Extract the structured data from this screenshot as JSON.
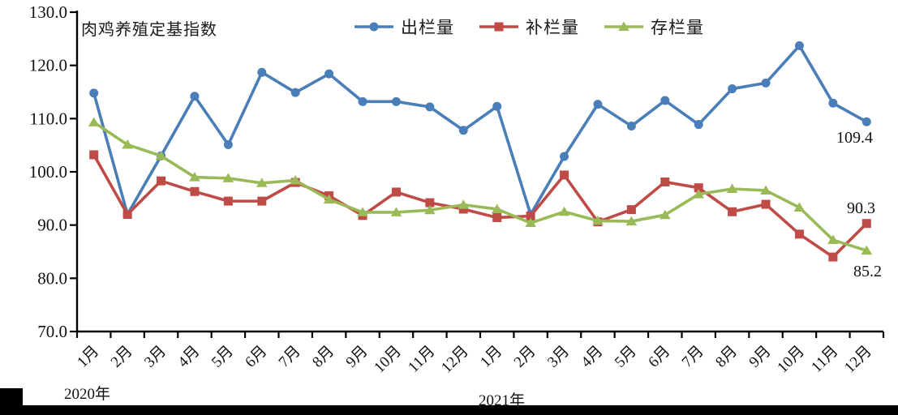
{
  "title": "肉鸡养殖定基指数",
  "chart_data": {
    "type": "line",
    "title": "肉鸡养殖定基指数",
    "xlabel": "",
    "ylabel": "",
    "ylim": [
      70,
      130
    ],
    "y_ticks": [
      "130.0",
      "120.0",
      "110.0",
      "100.0",
      "90.0",
      "80.0",
      "70.0"
    ],
    "grid": false,
    "legend_position": "top",
    "x_categories": [
      "1月",
      "2月",
      "3月",
      "4月",
      "5月",
      "6月",
      "7月",
      "8月",
      "9月",
      "10月",
      "11月",
      "12月",
      "1月",
      "2月",
      "3月",
      "4月",
      "5月",
      "6月",
      "7月",
      "8月",
      "9月",
      "10月",
      "11月",
      "12月"
    ],
    "year_groups": [
      {
        "label": "2020年",
        "start": 0,
        "end": 11
      },
      {
        "label": "2021年",
        "start": 12,
        "end": 23
      }
    ],
    "series": [
      {
        "name": "出栏量",
        "marker": "circle",
        "color": "#4a7eb8",
        "values": [
          114.8,
          92.0,
          103.0,
          114.2,
          105.1,
          118.7,
          114.9,
          118.4,
          113.2,
          113.2,
          112.2,
          107.8,
          112.3,
          92.0,
          102.9,
          112.7,
          108.6,
          113.4,
          108.9,
          115.6,
          116.7,
          123.7,
          112.9,
          109.4
        ]
      },
      {
        "name": "补栏量",
        "marker": "square",
        "color": "#bf4b47",
        "values": [
          103.2,
          92.0,
          98.3,
          96.3,
          94.5,
          94.5,
          98.0,
          95.5,
          91.8,
          96.2,
          94.2,
          93.0,
          91.4,
          91.7,
          99.4,
          90.6,
          92.9,
          98.1,
          97.0,
          92.5,
          93.9,
          88.3,
          84.0,
          90.3
        ]
      },
      {
        "name": "存栏量",
        "marker": "triangle",
        "color": "#9aba58",
        "values": [
          109.3,
          105.1,
          103.0,
          99.0,
          98.8,
          97.9,
          98.4,
          94.8,
          92.4,
          92.4,
          92.8,
          93.8,
          93.0,
          90.4,
          92.5,
          90.8,
          90.7,
          91.9,
          95.8,
          96.8,
          96.5,
          93.3,
          87.2,
          85.2
        ]
      }
    ],
    "annotations": [
      {
        "text": "109.4",
        "series": "出栏量"
      },
      {
        "text": "90.3",
        "series": "补栏量"
      },
      {
        "text": "85.2",
        "series": "存栏量"
      }
    ],
    "axis_color": "#000000"
  }
}
